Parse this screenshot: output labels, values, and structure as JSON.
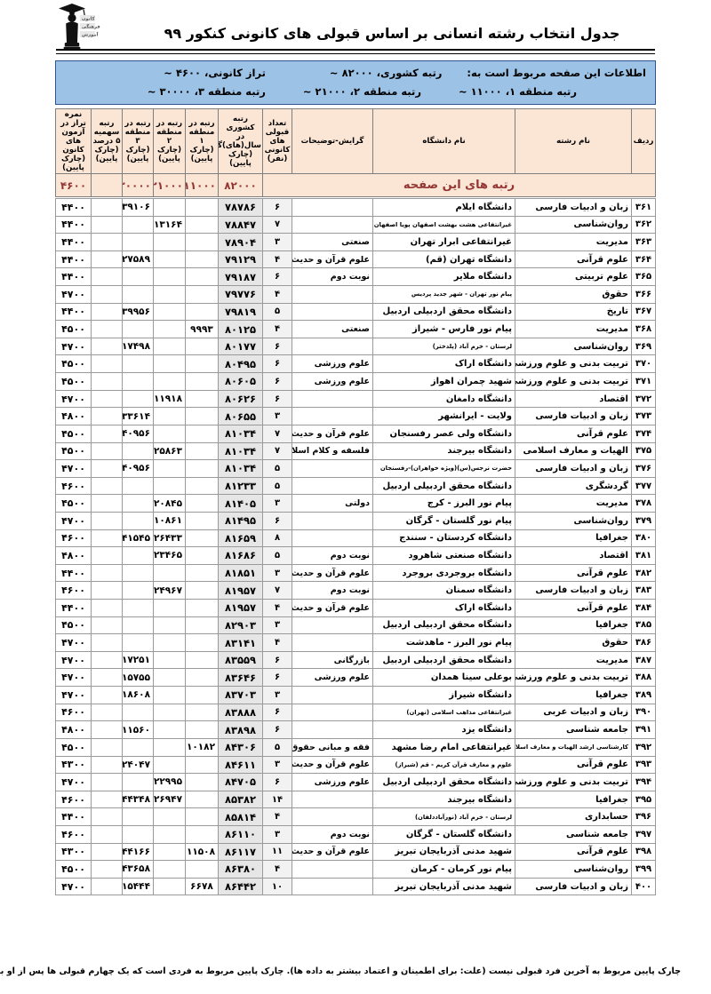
{
  "title": "جدول انتخاب رشته انسانی بر اساس قبولی های کانونی کنکور ۹۹",
  "logo": {
    "name": "کانون فرهنگی آموزش",
    "lines": [
      "کانون",
      "فرهنگی",
      "آموزش"
    ]
  },
  "info_bar": {
    "intro": "اطلاعات این صفحه مربوط است به:",
    "national": "رتبه کشوری، ۸۲۰۰۰ ~",
    "taraz": "تراز کانونی، ۴۶۰۰ ~",
    "region1": "رتبه منطقه ۱، ۱۱۰۰۰ ~",
    "region2": "رتبه منطقه ۲، ۲۱۰۰۰ ~",
    "region3": "رتبه منطقه ۳، ۳۰۰۰۰ ~"
  },
  "colors": {
    "info_bar_bg": "#9cc2e5",
    "header_bg": "#fbe5d5",
    "summary_text": "#943634",
    "national_col_bg": "#e7e6e6",
    "count_col_bg": "#f2f2f2"
  },
  "table": {
    "columns": [
      {
        "key": "r",
        "label": "ردیف"
      },
      {
        "key": "f",
        "label": "نام رشته"
      },
      {
        "key": "u",
        "label": "نام دانشگاه"
      },
      {
        "key": "g",
        "label": "گرایش-توضیحات"
      },
      {
        "key": "n",
        "label": "تعداد قبولی\nهای کانونی\n(نفر)"
      },
      {
        "key": "k",
        "label": "رتبه کشوری\nدر سال(های)گذشته\n(چارک پایین)"
      },
      {
        "key": "m1",
        "label": "رتبه در\nمنطقه ۱\n(چارک پایین)"
      },
      {
        "key": "m2",
        "label": "رتبه در\nمنطقه ۲\n(چارک پایین)"
      },
      {
        "key": "m3",
        "label": "رتبه در\nمنطقه ۳\n(چارک پایین)"
      },
      {
        "key": "s",
        "label": "رتبه سهمیه\n۵ درصد\n(چارک پایین)"
      },
      {
        "key": "t",
        "label": "نمره تراز در\nآزمون های\nکانون\n(چارک پایین)"
      }
    ],
    "summary": {
      "label": "رتبه های این صفحه",
      "k": "۸۲۰۰۰",
      "m1": "۱۱۰۰۰",
      "m2": "۲۱۰۰۰",
      "m3": "۳۰۰۰۰",
      "s": "",
      "t": "۴۶۰۰"
    },
    "rows": [
      {
        "r": "۳۶۱",
        "f": "زبان و ادبیات فارسی",
        "u": "دانشگاه ایلام",
        "g": "",
        "n": "۶",
        "k": "۷۸۷۸۶",
        "m1": "",
        "m2": "",
        "m3": "۳۹۱۰۶",
        "s": "",
        "t": "۴۴۰۰"
      },
      {
        "r": "۳۶۲",
        "f": "روان‌شناسی",
        "u": "غیرانتفاعی هشت بهشت اصفهان پویا اصفهان",
        "g": "",
        "n": "۷",
        "k": "۷۸۸۴۷",
        "m1": "",
        "m2": "۱۳۱۶۴",
        "m3": "",
        "s": "",
        "t": "۴۴۰۰",
        "sm": [
          "u"
        ]
      },
      {
        "r": "۳۶۳",
        "f": "مدیریت",
        "u": "غیرانتفاعی ابرار تهران",
        "g": "صنعتی",
        "n": "۳",
        "k": "۷۸۹۰۴",
        "m1": "",
        "m2": "",
        "m3": "",
        "s": "",
        "t": "۴۴۰۰"
      },
      {
        "r": "۳۶۴",
        "f": "علوم قرآنی",
        "u": "دانشگاه تهران (قم)",
        "g": "علوم قرآن و حدیث",
        "n": "۴",
        "k": "۷۹۱۲۹",
        "m1": "",
        "m2": "",
        "m3": "۲۷۵۸۹",
        "s": "",
        "t": "۴۴۰۰"
      },
      {
        "r": "۳۶۵",
        "f": "علوم تربیتی",
        "u": "دانشگاه ملایر",
        "g": "نوبت دوم",
        "n": "۶",
        "k": "۷۹۱۸۷",
        "m1": "",
        "m2": "",
        "m3": "",
        "s": "",
        "t": "۴۴۰۰"
      },
      {
        "r": "۳۶۶",
        "f": "حقوق",
        "u": "پیام نور تهران - شهر جدید پردیس",
        "g": "",
        "n": "۴",
        "k": "۷۹۷۷۶",
        "m1": "",
        "m2": "",
        "m3": "",
        "s": "",
        "t": "۴۷۰۰",
        "sm": [
          "u"
        ]
      },
      {
        "r": "۳۶۷",
        "f": "تاریخ",
        "u": "دانشگاه محقق اردبیلی اردبیل",
        "g": "",
        "n": "۵",
        "k": "۷۹۸۱۹",
        "m1": "",
        "m2": "",
        "m3": "۳۹۹۵۶",
        "s": "",
        "t": "۴۴۰۰"
      },
      {
        "r": "۳۶۸",
        "f": "مدیریت",
        "u": "پیام نور فارس - شیراز",
        "g": "صنعتی",
        "n": "۴",
        "k": "۸۰۱۲۵",
        "m1": "۹۹۹۳",
        "m2": "",
        "m3": "",
        "s": "",
        "t": "۴۵۰۰"
      },
      {
        "r": "۳۶۹",
        "f": "روان‌شناسی",
        "u": "لرستان - خرم آباد (پلدختر)",
        "g": "",
        "n": "۶",
        "k": "۸۰۱۷۷",
        "m1": "",
        "m2": "",
        "m3": "۱۷۴۹۸",
        "s": "",
        "t": "۴۷۰۰",
        "sm": [
          "u"
        ]
      },
      {
        "r": "۳۷۰",
        "f": "تربیت بدنی و علوم ورزشی",
        "u": "دانشگاه اراک",
        "g": "علوم ورزشی",
        "n": "۶",
        "k": "۸۰۴۹۵",
        "m1": "",
        "m2": "",
        "m3": "",
        "s": "",
        "t": "۴۵۰۰"
      },
      {
        "r": "۳۷۱",
        "f": "تربیت بدنی و علوم ورزشی",
        "u": "شهید چمران اهواز",
        "g": "علوم ورزشی",
        "n": "۶",
        "k": "۸۰۶۰۵",
        "m1": "",
        "m2": "",
        "m3": "",
        "s": "",
        "t": "۴۵۰۰"
      },
      {
        "r": "۳۷۲",
        "f": "اقتصاد",
        "u": "دانشگاه دامغان",
        "g": "",
        "n": "۶",
        "k": "۸۰۶۲۶",
        "m1": "",
        "m2": "۱۱۹۱۸",
        "m3": "",
        "s": "",
        "t": "۴۷۰۰"
      },
      {
        "r": "۳۷۳",
        "f": "زبان و ادبیات فارسی",
        "u": "ولایت - ایرانشهر",
        "g": "",
        "n": "۳",
        "k": "۸۰۶۵۵",
        "m1": "",
        "m2": "",
        "m3": "۳۳۶۱۴",
        "s": "",
        "t": "۴۸۰۰"
      },
      {
        "r": "۳۷۴",
        "f": "علوم قرآنی",
        "u": "دانشگاه ولی عصر رفسنجان",
        "g": "علوم قرآن و حدیث",
        "n": "۷",
        "k": "۸۱۰۳۴",
        "m1": "",
        "m2": "",
        "m3": "۴۰۹۵۶",
        "s": "",
        "t": "۴۵۰۰"
      },
      {
        "r": "۳۷۵",
        "f": "الهیات و معارف اسلامی",
        "u": "دانشگاه بیرجند",
        "g": "فلسفه و کلام اسلامی",
        "n": "۷",
        "k": "۸۱۰۳۴",
        "m1": "",
        "m2": "۲۵۸۶۳",
        "m3": "",
        "s": "",
        "t": "۴۵۰۰"
      },
      {
        "r": "۳۷۶",
        "f": "زبان و ادبیات فارسی",
        "u": "حضرت نرجس(س)(ویژه خواهران)-رفسنجان",
        "g": "",
        "n": "۵",
        "k": "۸۱۰۳۴",
        "m1": "",
        "m2": "",
        "m3": "۴۰۹۵۶",
        "s": "",
        "t": "۴۷۰۰",
        "sm": [
          "u"
        ]
      },
      {
        "r": "۳۷۷",
        "f": "گردشگری",
        "u": "دانشگاه محقق اردبیلی اردبیل",
        "g": "",
        "n": "۵",
        "k": "۸۱۲۳۳",
        "m1": "",
        "m2": "",
        "m3": "",
        "s": "",
        "t": "۴۶۰۰"
      },
      {
        "r": "۳۷۸",
        "f": "مدیریت",
        "u": "پیام نور البرز - کرج",
        "g": "دولتی",
        "n": "۳",
        "k": "۸۱۴۰۵",
        "m1": "",
        "m2": "۲۰۸۴۵",
        "m3": "",
        "s": "",
        "t": "۴۵۰۰"
      },
      {
        "r": "۳۷۹",
        "f": "روان‌شناسی",
        "u": "پیام نور گلستان - گرگان",
        "g": "",
        "n": "۶",
        "k": "۸۱۴۹۵",
        "m1": "",
        "m2": "۱۰۸۶۱",
        "m3": "",
        "s": "",
        "t": "۴۷۰۰"
      },
      {
        "r": "۳۸۰",
        "f": "جغرافیا",
        "u": "دانشگاه کردستان - سنندج",
        "g": "",
        "n": "۸",
        "k": "۸۱۶۵۹",
        "m1": "",
        "m2": "۲۶۴۳۳",
        "m3": "۴۱۵۴۵",
        "s": "",
        "t": "۴۶۰۰"
      },
      {
        "r": "۳۸۱",
        "f": "اقتصاد",
        "u": "دانشگاه صنعتی شاهرود",
        "g": "نوبت دوم",
        "n": "۵",
        "k": "۸۱۶۸۶",
        "m1": "",
        "m2": "۲۳۴۶۵",
        "m3": "",
        "s": "",
        "t": "۴۸۰۰"
      },
      {
        "r": "۳۸۲",
        "f": "علوم قرآنی",
        "u": "دانشگاه بروجردی بروجرد",
        "g": "علوم قرآن و حدیث",
        "n": "۳",
        "k": "۸۱۸۵۱",
        "m1": "",
        "m2": "",
        "m3": "",
        "s": "",
        "t": "۴۴۰۰"
      },
      {
        "r": "۳۸۳",
        "f": "زبان و ادبیات فارسی",
        "u": "دانشگاه سمنان",
        "g": "نوبت دوم",
        "n": "۷",
        "k": "۸۱۹۵۷",
        "m1": "",
        "m2": "۲۴۹۶۷",
        "m3": "",
        "s": "",
        "t": "۴۶۰۰"
      },
      {
        "r": "۳۸۴",
        "f": "علوم قرآنی",
        "u": "دانشگاه اراک",
        "g": "علوم قرآن و حدیث",
        "n": "۴",
        "k": "۸۱۹۵۷",
        "m1": "",
        "m2": "",
        "m3": "",
        "s": "",
        "t": "۴۴۰۰"
      },
      {
        "r": "۳۸۵",
        "f": "جغرافیا",
        "u": "دانشگاه محقق اردبیلی اردبیل",
        "g": "",
        "n": "۳",
        "k": "۸۲۹۰۳",
        "m1": "",
        "m2": "",
        "m3": "",
        "s": "",
        "t": "۴۵۰۰"
      },
      {
        "r": "۳۸۶",
        "f": "حقوق",
        "u": "پیام نور البرز - ماهدشت",
        "g": "",
        "n": "۴",
        "k": "۸۳۱۴۱",
        "m1": "",
        "m2": "",
        "m3": "",
        "s": "",
        "t": "۴۷۰۰"
      },
      {
        "r": "۳۸۷",
        "f": "مدیریت",
        "u": "دانشگاه محقق اردبیلی اردبیل",
        "g": "بازرگانی",
        "n": "۶",
        "k": "۸۳۵۵۹",
        "m1": "",
        "m2": "",
        "m3": "۱۷۲۵۱",
        "s": "",
        "t": "۴۷۰۰"
      },
      {
        "r": "۳۸۸",
        "f": "تربیت بدنی و علوم ورزشی",
        "u": "بوعلی سینا همدان",
        "g": "علوم ورزشی",
        "n": "۶",
        "k": "۸۳۶۴۶",
        "m1": "",
        "m2": "",
        "m3": "۱۵۷۵۵",
        "s": "",
        "t": "۴۷۰۰"
      },
      {
        "r": "۳۸۹",
        "f": "جغرافیا",
        "u": "دانشگاه شیراز",
        "g": "",
        "n": "۳",
        "k": "۸۳۷۰۳",
        "m1": "",
        "m2": "",
        "m3": "۱۸۶۰۸",
        "s": "",
        "t": "۴۷۰۰"
      },
      {
        "r": "۳۹۰",
        "f": "زبان و ادبیات عربی",
        "u": "غیرانتفاعی مذاهب اسلامی (تهران)",
        "g": "",
        "n": "۶",
        "k": "۸۳۸۸۸",
        "m1": "",
        "m2": "",
        "m3": "",
        "s": "",
        "t": "۴۶۰۰",
        "sm": [
          "u"
        ]
      },
      {
        "r": "۳۹۱",
        "f": "جامعه شناسی",
        "u": "دانشگاه یزد",
        "g": "",
        "n": "۶",
        "k": "۸۳۸۹۸",
        "m1": "",
        "m2": "",
        "m3": "۱۱۵۶۰",
        "s": "",
        "t": "۴۸۰۰"
      },
      {
        "r": "۳۹۲",
        "f": "کارشناسی ارشد الهیات و معارف اسلامی و ارشاد",
        "u": "غیرانتفاعی امام رضا مشهد",
        "g": "فقه و مبانی حقوق اسلامی",
        "n": "۵",
        "k": "۸۴۳۰۶",
        "m1": "۱۰۱۸۲",
        "m2": "",
        "m3": "",
        "s": "",
        "t": "۴۵۰۰",
        "sm": [
          "f"
        ]
      },
      {
        "r": "۳۹۳",
        "f": "علوم قرآنی",
        "u": "علوم و معارف قرآن کریم - قم (شیراز)",
        "g": "علوم قرآن و حدیث",
        "n": "۳",
        "k": "۸۴۶۱۱",
        "m1": "",
        "m2": "",
        "m3": "۲۴۰۴۷",
        "s": "",
        "t": "۴۳۰۰",
        "sm": [
          "u"
        ]
      },
      {
        "r": "۳۹۴",
        "f": "تربیت بدنی و علوم ورزشی",
        "u": "دانشگاه محقق اردبیلی اردبیل",
        "g": "علوم ورزشی",
        "n": "۶",
        "k": "۸۴۷۰۵",
        "m1": "",
        "m2": "۲۲۹۹۵",
        "m3": "",
        "s": "",
        "t": "۴۷۰۰"
      },
      {
        "r": "۳۹۵",
        "f": "جغرافیا",
        "u": "دانشگاه بیرجند",
        "g": "",
        "n": "۱۴",
        "k": "۸۵۳۸۲",
        "m1": "",
        "m2": "۲۶۹۴۷",
        "m3": "۴۴۳۴۸",
        "s": "",
        "t": "۴۶۰۰"
      },
      {
        "r": "۳۹۶",
        "f": "حسابداری",
        "u": "لرستان - خرم آباد (نورآباددلفان)",
        "g": "",
        "n": "۴",
        "k": "۸۵۸۱۴",
        "m1": "",
        "m2": "",
        "m3": "",
        "s": "",
        "t": "۴۴۰۰",
        "sm": [
          "u"
        ]
      },
      {
        "r": "۳۹۷",
        "f": "جامعه شناسی",
        "u": "دانشگاه گلستان - گرگان",
        "g": "نوبت دوم",
        "n": "۳",
        "k": "۸۶۱۱۰",
        "m1": "",
        "m2": "",
        "m3": "",
        "s": "",
        "t": "۴۶۰۰"
      },
      {
        "r": "۳۹۸",
        "f": "علوم قرآنی",
        "u": "شهید مدنی آذربایجان تبریز",
        "g": "علوم قرآن و حدیث",
        "n": "۱۱",
        "k": "۸۶۱۱۷",
        "m1": "۱۱۵۰۸",
        "m2": "",
        "m3": "۴۴۱۶۶",
        "s": "",
        "t": "۴۳۰۰"
      },
      {
        "r": "۳۹۹",
        "f": "روان‌شناسی",
        "u": "پیام نور کرمان - کرمان",
        "g": "",
        "n": "۴",
        "k": "۸۶۳۸۰",
        "m1": "",
        "m2": "",
        "m3": "۴۳۶۵۸",
        "s": "",
        "t": "۴۵۰۰"
      },
      {
        "r": "۴۰۰",
        "f": "زبان و ادبیات فارسی",
        "u": "شهید مدنی آذربایجان تبریز",
        "g": "",
        "n": "۱۰",
        "k": "۸۶۴۴۲",
        "m1": "۶۶۷۸",
        "m2": "",
        "m3": "۱۵۴۴۴",
        "s": "",
        "t": "۴۷۰۰"
      }
    ]
  },
  "footer": {
    "note": "چارک پایین مربوط به آخرین فرد قبولی نیست (علت: برای اطمینان و اعتماد بیشتر به داده ها). چارک پایین مربوط به فردی است که یک چهارم قبولی ها پس از او بوده اند و سه چهارم قبولی ها قبل از او ."
  }
}
